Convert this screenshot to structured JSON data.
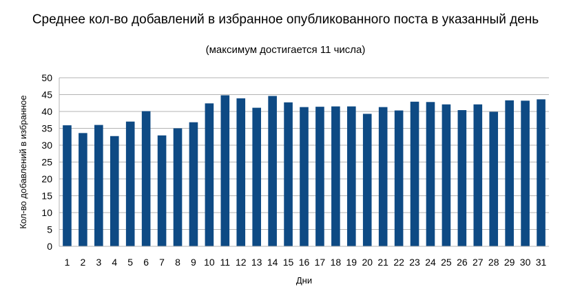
{
  "chart_data": {
    "type": "bar",
    "title": "Среднее кол-во добавлений в избранное опубликованного поста в указанный день",
    "subtitle": "(максимум достигается 11 числа)",
    "xlabel": "Дни",
    "ylabel": "Кол-во добавлений в избранное",
    "ylim": [
      0,
      50
    ],
    "yticks": [
      0,
      5,
      10,
      15,
      20,
      25,
      30,
      35,
      40,
      45,
      50
    ],
    "grid": true,
    "legend": "none",
    "bar_color": "#0e4a84",
    "categories": [
      "1",
      "2",
      "3",
      "4",
      "5",
      "6",
      "7",
      "8",
      "9",
      "10",
      "11",
      "12",
      "13",
      "14",
      "15",
      "16",
      "17",
      "18",
      "19",
      "20",
      "21",
      "22",
      "23",
      "24",
      "25",
      "26",
      "27",
      "28",
      "29",
      "30",
      "31"
    ],
    "values": [
      35.9,
      33.6,
      36.0,
      32.7,
      37.0,
      40.1,
      32.9,
      35.0,
      36.8,
      42.4,
      44.8,
      43.9,
      41.1,
      44.6,
      42.7,
      41.3,
      41.4,
      41.5,
      41.5,
      39.3,
      41.3,
      40.3,
      42.9,
      42.8,
      42.1,
      40.4,
      42.1,
      39.9,
      43.3,
      43.2,
      43.6
    ]
  }
}
